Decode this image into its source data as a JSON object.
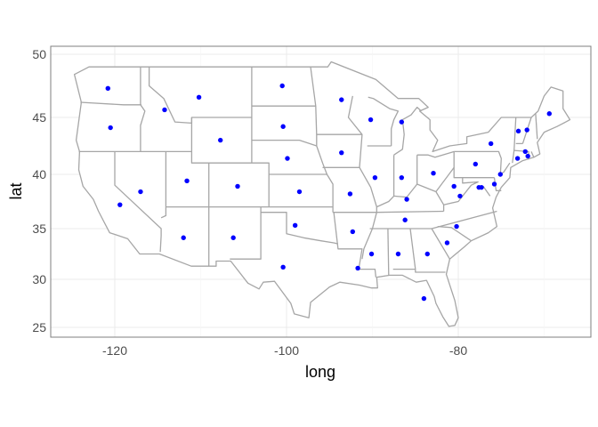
{
  "chart_data": {
    "type": "scatter",
    "xlabel": "long",
    "ylabel": "lat",
    "x_ticks": [
      -120,
      -100,
      -80
    ],
    "x_tick_labels": [
      "-120",
      "-100",
      "-80"
    ],
    "y_ticks": [
      25,
      30,
      35,
      40,
      45,
      50
    ],
    "y_tick_labels": [
      "25",
      "30",
      "35",
      "40",
      "45",
      "50"
    ],
    "xlim": [
      -127.5,
      -64.5
    ],
    "ylim": [
      24,
      50.5
    ],
    "grid": true,
    "background": "US state boundaries map",
    "colors": {
      "points": "#0000ff",
      "borders": "#a6a6a6",
      "grid": "#ebebeb",
      "panel_border": "#7f7f7f"
    },
    "points": [
      [
        -120.8,
        47.3
      ],
      [
        -120.5,
        44.1
      ],
      [
        -119.4,
        37.2
      ],
      [
        -117.0,
        38.4
      ],
      [
        -114.2,
        45.6
      ],
      [
        -110.2,
        46.6
      ],
      [
        -111.6,
        39.4
      ],
      [
        -112.0,
        34.1
      ],
      [
        -107.7,
        43.0
      ],
      [
        -105.7,
        38.9
      ],
      [
        -106.2,
        34.1
      ],
      [
        -100.5,
        47.5
      ],
      [
        -100.4,
        44.2
      ],
      [
        -99.9,
        41.4
      ],
      [
        -98.5,
        38.4
      ],
      [
        -99.0,
        35.3
      ],
      [
        -100.4,
        31.2
      ],
      [
        -93.6,
        46.4
      ],
      [
        -93.6,
        41.9
      ],
      [
        -92.6,
        38.2
      ],
      [
        -92.3,
        34.7
      ],
      [
        -91.7,
        31.1
      ],
      [
        -90.2,
        44.8
      ],
      [
        -89.7,
        39.7
      ],
      [
        -86.6,
        44.6
      ],
      [
        -86.6,
        39.7
      ],
      [
        -86.0,
        37.7
      ],
      [
        -86.2,
        35.8
      ],
      [
        -90.1,
        32.5
      ],
      [
        -87.0,
        32.5
      ],
      [
        -83.6,
        32.5
      ],
      [
        -84.0,
        28.0
      ],
      [
        -82.9,
        40.1
      ],
      [
        -81.3,
        33.6
      ],
      [
        -80.2,
        35.2
      ],
      [
        -80.5,
        38.9
      ],
      [
        -79.8,
        38.0
      ],
      [
        -78.0,
        40.9
      ],
      [
        -77.6,
        38.8
      ],
      [
        -77.3,
        38.8
      ],
      [
        -75.8,
        39.1
      ],
      [
        -75.1,
        40.0
      ],
      [
        -76.2,
        42.7
      ],
      [
        -73.1,
        41.4
      ],
      [
        -73.0,
        43.8
      ],
      [
        -72.0,
        43.9
      ],
      [
        -72.2,
        42.0
      ],
      [
        -71.9,
        41.6
      ],
      [
        -69.4,
        45.3
      ]
    ]
  }
}
